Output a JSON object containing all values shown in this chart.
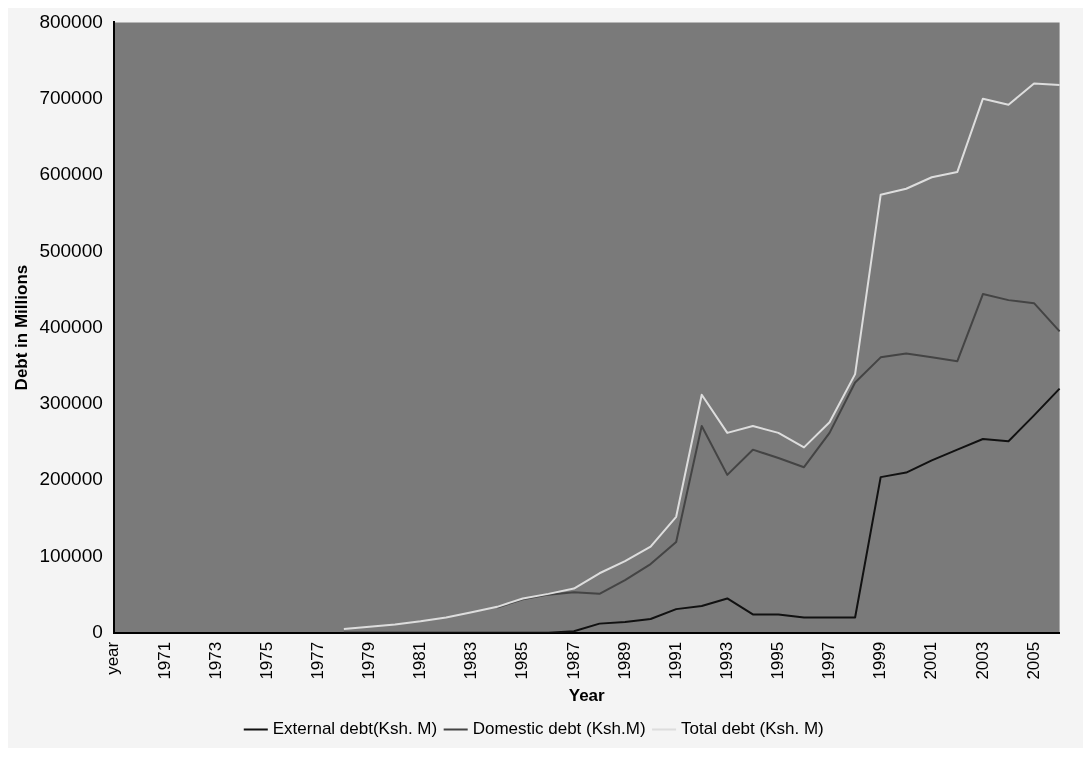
{
  "chart_data": {
    "type": "line",
    "xlabel": "Year",
    "ylabel": "Debt in Millions",
    "categories": [
      "year",
      null,
      "1971",
      null,
      "1973",
      null,
      "1975",
      null,
      "1977",
      null,
      "1979",
      null,
      "1981",
      null,
      "1983",
      null,
      "1985",
      null,
      "1987",
      null,
      "1989",
      null,
      "1991",
      null,
      "1993",
      null,
      "1995",
      null,
      "1997",
      null,
      "1999",
      null,
      "2001",
      null,
      "2003",
      null,
      "2005",
      null
    ],
    "series": [
      {
        "name": "External debt(Ksh. M)",
        "color": "#111111",
        "values": [
          null,
          null,
          null,
          null,
          null,
          null,
          null,
          null,
          null,
          0,
          0,
          0,
          0,
          0,
          0,
          0,
          0,
          0,
          2000,
          12000,
          14000,
          18000,
          31000,
          35000,
          45000,
          24000,
          24000,
          20000,
          20000,
          20000,
          204000,
          210000,
          226000,
          240000,
          254000,
          251000,
          285000,
          320000
        ]
      },
      {
        "name": "Domestic debt (Ksh.M)",
        "color": "#444444",
        "values": [
          null,
          null,
          null,
          null,
          null,
          null,
          null,
          null,
          null,
          null,
          null,
          null,
          null,
          null,
          null,
          33000,
          44000,
          50000,
          53000,
          51000,
          69000,
          90000,
          119000,
          271000,
          207000,
          240000,
          229000,
          217000,
          262000,
          328000,
          361000,
          366000,
          361000,
          356000,
          444000,
          436000,
          432000,
          395000
        ]
      },
      {
        "name": "Total debt (Ksh. M)",
        "color": "#dddddd",
        "values": [
          null,
          null,
          null,
          null,
          null,
          null,
          null,
          null,
          null,
          5000,
          8000,
          11000,
          15000,
          20000,
          27000,
          34000,
          45000,
          51000,
          58000,
          78000,
          94000,
          113000,
          152000,
          312000,
          262000,
          271000,
          262000,
          243000,
          276000,
          339000,
          574000,
          582000,
          597000,
          604000,
          700000,
          692000,
          720000,
          718000
        ]
      }
    ],
    "ylim": [
      0,
      800000
    ],
    "yticks": [
      0,
      100000,
      200000,
      300000,
      400000,
      500000,
      600000,
      700000,
      800000
    ],
    "legend": "bottom",
    "marker": "none",
    "line_style": "solid"
  }
}
